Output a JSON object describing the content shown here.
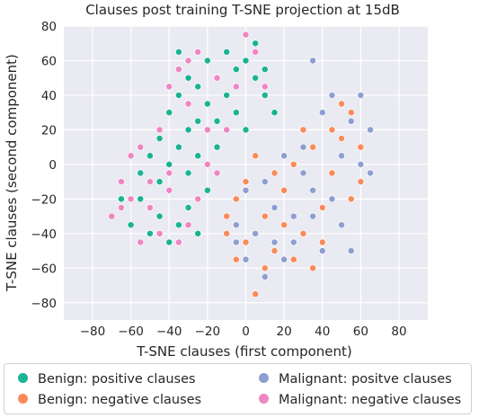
{
  "chart_data": {
    "type": "scatter",
    "title": "Clauses post training T-SNE projection at 15dB",
    "xlabel": "T-SNE clauses (first component)",
    "ylabel": "T-SNE clauses (second component)",
    "xlim": [
      -95,
      95
    ],
    "ylim": [
      -90,
      80
    ],
    "xticks": [
      "−80",
      "−60",
      "−40",
      "−20",
      "0",
      "20",
      "40",
      "60",
      "80"
    ],
    "yticks": [
      "80",
      "60",
      "40",
      "20",
      "0",
      "−20",
      "−40",
      "−60",
      "−80"
    ],
    "grid": true,
    "legend_position": "bottom",
    "series": [
      {
        "name": "Benign: positive clauses",
        "color": "#1ab393",
        "points": [
          [
            -60,
            -35
          ],
          [
            -55,
            -20
          ],
          [
            -50,
            -40
          ],
          [
            -45,
            -30
          ],
          [
            -40,
            -45
          ],
          [
            -35,
            -35
          ],
          [
            -30,
            -25
          ],
          [
            -25,
            -40
          ],
          [
            -55,
            -5
          ],
          [
            -50,
            5
          ],
          [
            -45,
            -10
          ],
          [
            -40,
            0
          ],
          [
            -35,
            10
          ],
          [
            -30,
            -5
          ],
          [
            -25,
            5
          ],
          [
            -20,
            -15
          ],
          [
            -40,
            30
          ],
          [
            -35,
            40
          ],
          [
            -30,
            50
          ],
          [
            -25,
            45
          ],
          [
            -20,
            35
          ],
          [
            -15,
            25
          ],
          [
            -10,
            40
          ],
          [
            -5,
            55
          ],
          [
            0,
            60
          ],
          [
            5,
            50
          ],
          [
            10,
            40
          ],
          [
            15,
            30
          ],
          [
            -20,
            60
          ],
          [
            -10,
            65
          ],
          [
            5,
            70
          ],
          [
            -30,
            20
          ],
          [
            -35,
            65
          ],
          [
            -5,
            30
          ],
          [
            0,
            20
          ],
          [
            10,
            55
          ],
          [
            -65,
            -20
          ],
          [
            -45,
            15
          ],
          [
            -15,
            10
          ],
          [
            -25,
            25
          ]
        ]
      },
      {
        "name": "Benign: negative clauses",
        "color": "#f98b5a",
        "points": [
          [
            -10,
            -40
          ],
          [
            -5,
            -20
          ],
          [
            0,
            -10
          ],
          [
            5,
            5
          ],
          [
            10,
            -30
          ],
          [
            15,
            -50
          ],
          [
            20,
            -15
          ],
          [
            25,
            0
          ],
          [
            30,
            -40
          ],
          [
            35,
            -60
          ],
          [
            40,
            -25
          ],
          [
            45,
            -5
          ],
          [
            50,
            15
          ],
          [
            55,
            30
          ],
          [
            60,
            10
          ],
          [
            30,
            20
          ],
          [
            -5,
            -55
          ],
          [
            10,
            -60
          ],
          [
            20,
            -35
          ],
          [
            25,
            -55
          ],
          [
            40,
            -45
          ],
          [
            45,
            20
          ],
          [
            50,
            35
          ],
          [
            60,
            -10
          ],
          [
            0,
            -45
          ],
          [
            15,
            -5
          ],
          [
            35,
            10
          ],
          [
            5,
            -75
          ],
          [
            55,
            -20
          ],
          [
            -10,
            -30
          ]
        ]
      },
      {
        "name": "Malignant: positve clauses",
        "color": "#8d9fd0",
        "points": [
          [
            -5,
            -35
          ],
          [
            0,
            -15
          ],
          [
            5,
            -40
          ],
          [
            10,
            -10
          ],
          [
            15,
            -25
          ],
          [
            20,
            -55
          ],
          [
            25,
            -30
          ],
          [
            30,
            -5
          ],
          [
            35,
            -30
          ],
          [
            40,
            -50
          ],
          [
            45,
            -20
          ],
          [
            50,
            5
          ],
          [
            55,
            25
          ],
          [
            60,
            40
          ],
          [
            65,
            20
          ],
          [
            40,
            30
          ],
          [
            50,
            -35
          ],
          [
            55,
            -50
          ],
          [
            25,
            -45
          ],
          [
            10,
            -65
          ],
          [
            -5,
            -45
          ],
          [
            30,
            10
          ],
          [
            45,
            40
          ],
          [
            60,
            0
          ],
          [
            65,
            -5
          ],
          [
            35,
            -15
          ],
          [
            0,
            -55
          ],
          [
            35,
            60
          ],
          [
            15,
            -45
          ],
          [
            20,
            5
          ]
        ]
      },
      {
        "name": "Malignant: negative clauses",
        "color": "#ee86c2",
        "points": [
          [
            -70,
            -30
          ],
          [
            -65,
            -10
          ],
          [
            -60,
            -20
          ],
          [
            -55,
            -45
          ],
          [
            -50,
            -25
          ],
          [
            -45,
            -40
          ],
          [
            -40,
            -15
          ],
          [
            -35,
            -45
          ],
          [
            -30,
            -35
          ],
          [
            -25,
            -20
          ],
          [
            -45,
            20
          ],
          [
            -40,
            45
          ],
          [
            -35,
            55
          ],
          [
            -25,
            65
          ],
          [
            -15,
            50
          ],
          [
            -5,
            45
          ],
          [
            5,
            65
          ],
          [
            -20,
            20
          ],
          [
            -10,
            20
          ],
          [
            -30,
            60
          ],
          [
            -55,
            10
          ],
          [
            -60,
            5
          ],
          [
            -40,
            -5
          ],
          [
            -30,
            35
          ],
          [
            0,
            75
          ],
          [
            -65,
            -25
          ],
          [
            -15,
            -5
          ],
          [
            -50,
            -10
          ],
          [
            10,
            45
          ],
          [
            -20,
            0
          ]
        ]
      }
    ]
  }
}
